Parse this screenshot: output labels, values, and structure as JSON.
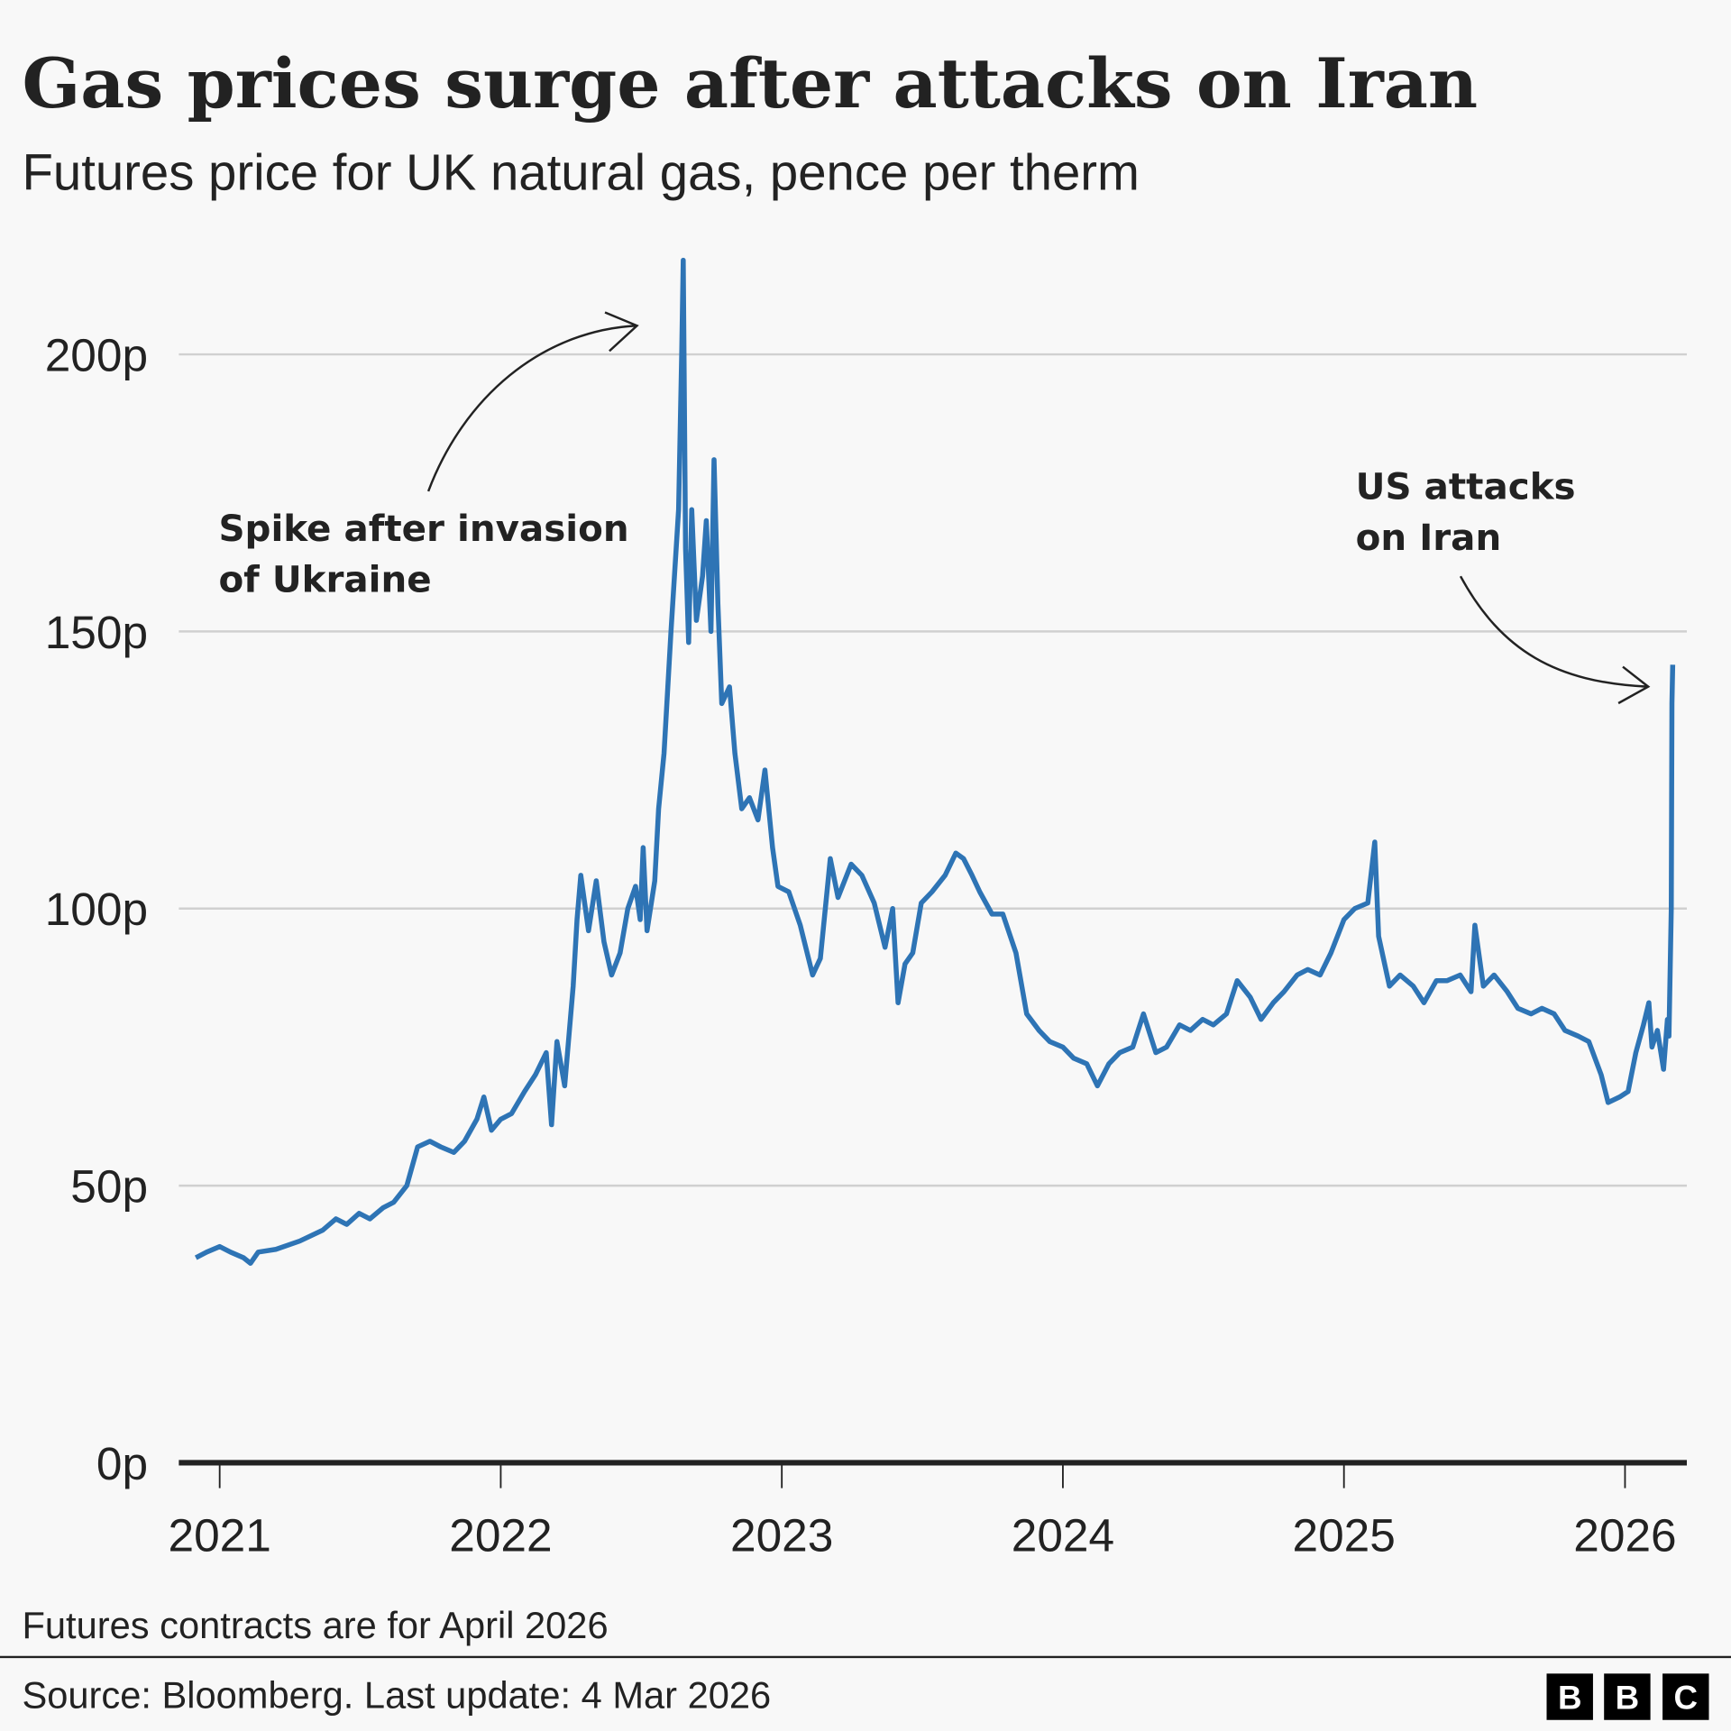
{
  "chart_data": {
    "type": "line",
    "title": "Gas prices surge after attacks on Iran",
    "subtitle": "Futures price for UK natural gas, pence per therm",
    "xlabel": "",
    "ylabel": "",
    "ylim": [
      0,
      220
    ],
    "xlim": [
      "2020-12-01",
      "2026-03-04"
    ],
    "y_ticks": [
      {
        "v": 0,
        "label": "0p"
      },
      {
        "v": 50,
        "label": "50p"
      },
      {
        "v": 100,
        "label": "100p"
      },
      {
        "v": 150,
        "label": "150p"
      },
      {
        "v": 200,
        "label": "200p"
      }
    ],
    "x_ticks": [
      "2021",
      "2022",
      "2023",
      "2024",
      "2025",
      "2026"
    ],
    "grid": true,
    "line_color": "#2e74b5",
    "annotations": [
      {
        "lines": [
          "Spike after invasion",
          "of Ukraine"
        ],
        "points_to": "2022-08-26"
      },
      {
        "lines": [
          "US attacks",
          "on Iran"
        ],
        "points_to": "2026-03-04"
      }
    ],
    "series": [
      {
        "x": [
          "2020-12-01",
          "2020-12-15",
          "2021-01-01",
          "2021-01-15",
          "2021-02-01",
          "2021-02-10",
          "2021-02-20",
          "2021-03-15",
          "2021-04-15",
          "2021-05-15",
          "2021-06-01",
          "2021-06-15",
          "2021-07-01",
          "2021-07-15",
          "2021-08-01",
          "2021-08-15",
          "2021-09-01",
          "2021-09-15",
          "2021-10-01",
          "2021-10-15",
          "2021-11-01",
          "2021-11-15",
          "2021-12-01",
          "2021-12-10",
          "2021-12-20",
          "2022-01-01",
          "2022-01-15",
          "2022-02-01",
          "2022-02-15",
          "2022-03-01",
          "2022-03-08",
          "2022-03-15",
          "2022-03-25",
          "2022-04-05",
          "2022-04-10",
          "2022-04-15",
          "2022-04-25",
          "2022-05-05",
          "2022-05-15",
          "2022-05-25",
          "2022-06-05",
          "2022-06-15",
          "2022-06-25",
          "2022-07-01",
          "2022-07-05",
          "2022-07-10",
          "2022-07-20",
          "2022-07-25",
          "2022-08-01",
          "2022-08-10",
          "2022-08-20",
          "2022-08-24",
          "2022-08-26",
          "2022-08-29",
          "2022-09-02",
          "2022-09-06",
          "2022-09-12",
          "2022-09-20",
          "2022-09-25",
          "2022-10-01",
          "2022-10-05",
          "2022-10-10",
          "2022-10-15",
          "2022-10-25",
          "2022-11-01",
          "2022-11-10",
          "2022-11-20",
          "2022-12-01",
          "2022-12-10",
          "2022-12-20",
          "2022-12-27",
          "2023-01-10",
          "2023-01-25",
          "2023-02-10",
          "2023-02-20",
          "2023-03-05",
          "2023-03-15",
          "2023-04-01",
          "2023-04-15",
          "2023-05-01",
          "2023-05-15",
          "2023-05-25",
          "2023-06-01",
          "2023-06-10",
          "2023-06-20",
          "2023-07-01",
          "2023-07-15",
          "2023-08-01",
          "2023-08-15",
          "2023-08-25",
          "2023-09-05",
          "2023-09-15",
          "2023-10-01",
          "2023-10-15",
          "2023-11-01",
          "2023-11-15",
          "2023-12-01",
          "2023-12-15",
          "2024-01-01",
          "2024-01-15",
          "2024-02-01",
          "2024-02-15",
          "2024-03-01",
          "2024-03-15",
          "2024-04-01",
          "2024-04-15",
          "2024-05-01",
          "2024-05-15",
          "2024-06-01",
          "2024-06-15",
          "2024-07-01",
          "2024-07-15",
          "2024-08-01",
          "2024-08-15",
          "2024-09-01",
          "2024-09-15",
          "2024-10-01",
          "2024-10-15",
          "2024-11-01",
          "2024-11-15",
          "2024-12-01",
          "2024-12-15",
          "2025-01-01",
          "2025-01-15",
          "2025-02-01",
          "2025-02-10",
          "2025-02-15",
          "2025-03-01",
          "2025-03-15",
          "2025-04-01",
          "2025-04-15",
          "2025-05-01",
          "2025-05-15",
          "2025-06-01",
          "2025-06-15",
          "2025-06-20",
          "2025-07-01",
          "2025-07-15",
          "2025-08-01",
          "2025-08-15",
          "2025-09-01",
          "2025-09-15",
          "2025-10-01",
          "2025-10-15",
          "2025-11-01",
          "2025-11-15",
          "2025-12-01",
          "2025-12-10",
          "2025-12-25",
          "2026-01-05",
          "2026-01-15",
          "2026-01-25",
          "2026-02-01",
          "2026-02-05",
          "2026-02-12",
          "2026-02-20",
          "2026-02-25",
          "2026-02-27",
          "2026-03-02",
          "2026-03-03",
          "2026-03-04"
        ],
        "y": [
          37,
          38,
          39,
          38,
          37,
          36,
          38,
          38.5,
          40,
          42,
          44,
          43,
          45,
          44,
          46,
          47,
          50,
          57,
          58,
          57,
          56,
          58,
          62,
          66,
          60,
          62,
          63,
          67,
          70,
          74,
          61,
          76,
          68,
          86,
          98,
          106,
          96,
          105,
          94,
          88,
          92,
          100,
          104,
          98,
          111,
          96,
          105,
          118,
          128,
          150,
          172,
          200,
          217,
          165,
          148,
          172,
          152,
          160,
          170,
          150,
          181,
          155,
          137,
          140,
          128,
          118,
          120,
          116,
          125,
          111,
          104,
          103,
          97,
          88,
          91,
          109,
          102,
          108,
          106,
          101,
          93,
          100,
          83,
          90,
          92,
          101,
          103,
          106,
          110,
          109,
          106,
          103,
          99,
          99,
          92,
          81,
          78,
          76,
          75,
          73,
          72,
          68,
          72,
          74,
          75,
          81,
          74,
          75,
          79,
          78,
          80,
          79,
          81,
          87,
          84,
          80,
          83,
          85,
          88,
          89,
          88,
          92,
          98,
          100,
          101,
          112,
          95,
          86,
          88,
          86,
          83,
          87,
          87,
          88,
          85,
          97,
          86,
          88,
          85,
          82,
          81,
          82,
          81,
          78,
          77,
          76,
          70,
          65,
          66,
          67,
          74,
          79,
          83,
          75,
          78,
          71,
          80,
          77,
          100,
          137,
          144
        ]
      }
    ]
  },
  "footer": {
    "note": "Futures contracts are for April 2026",
    "source": "Source: Bloomberg. Last update: 4 Mar 2026",
    "logo": "BBC"
  }
}
